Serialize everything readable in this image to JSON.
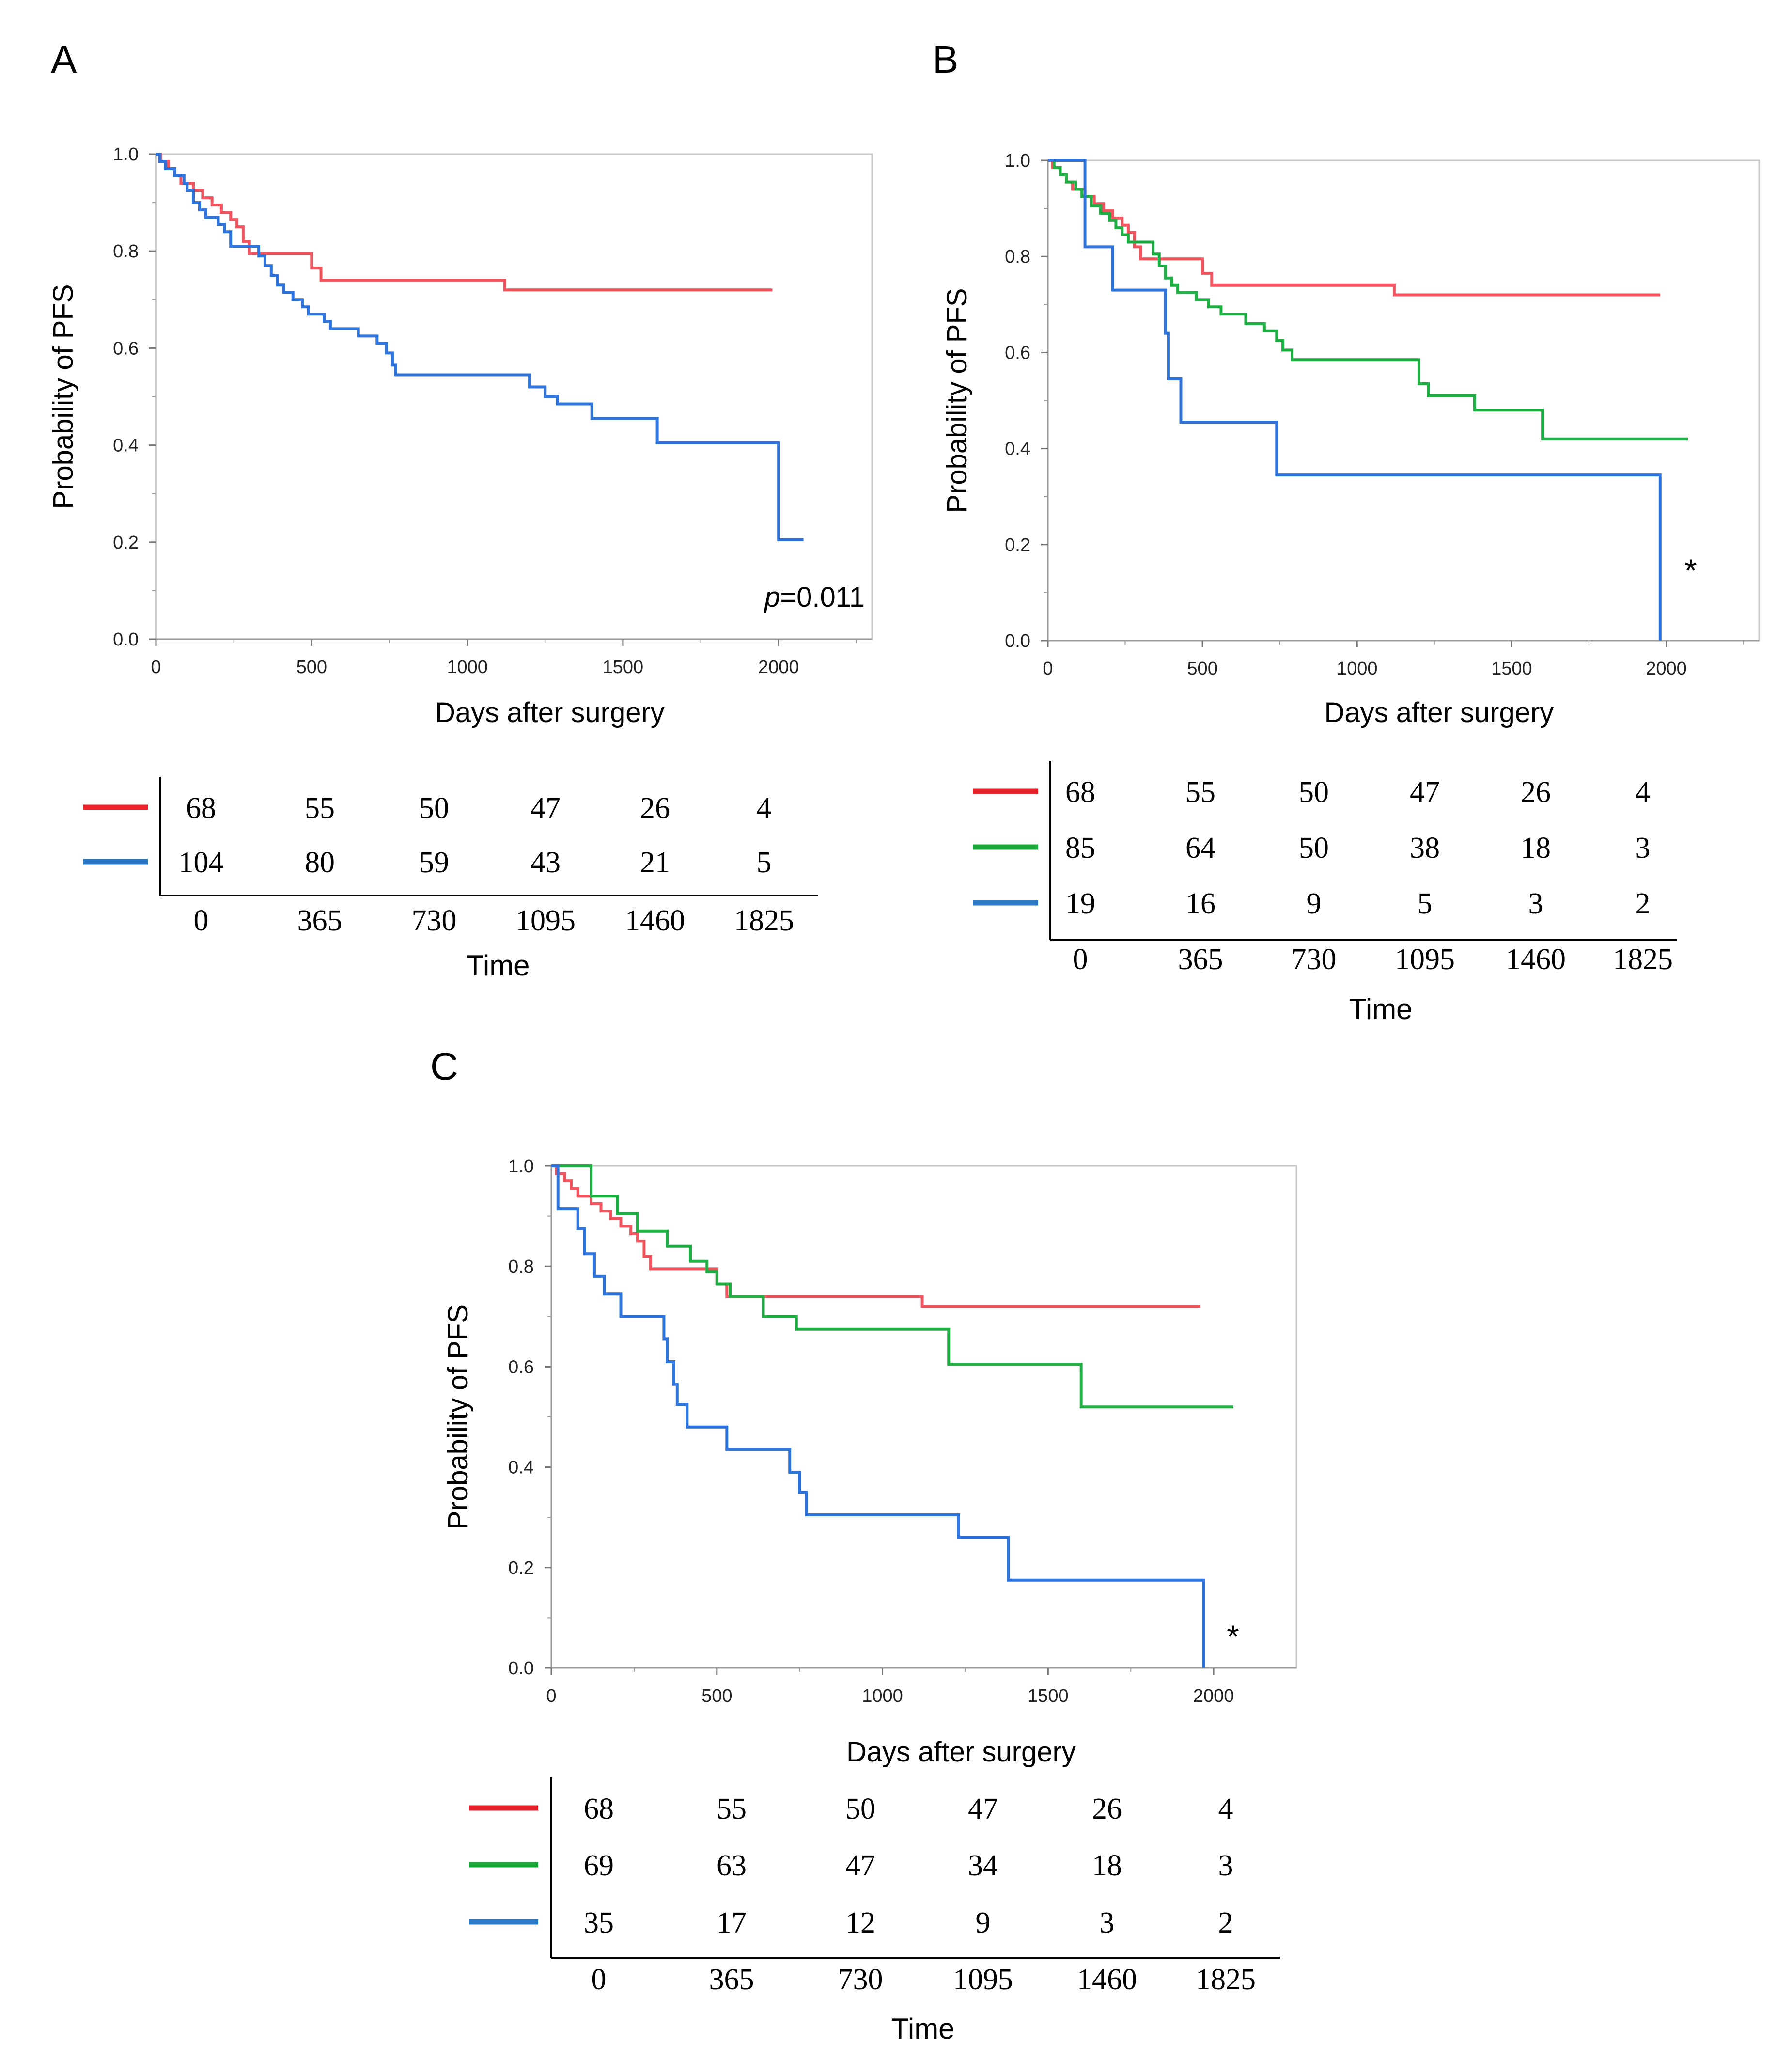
{
  "colors": {
    "red": "#f0555f",
    "green": "#1fae44",
    "blue": "#2f74dc",
    "table_red": "#e8202a",
    "table_green": "#18a83a",
    "table_blue": "#2a78c6"
  },
  "chart_data": [
    {
      "id": "A",
      "type": "line",
      "panel_label": "A",
      "xlabel": "Days after surgery",
      "ylabel": "Probability of PFS",
      "xlim": [
        0,
        2300
      ],
      "ylim": [
        0,
        1
      ],
      "xticks": [
        "0",
        "500",
        "1000",
        "1500",
        "2000"
      ],
      "yticks": [
        "0.0",
        "0.2",
        "0.4",
        "0.6",
        "0.8",
        "1.0"
      ],
      "annotation": {
        "italic": "p",
        "text": "=0.011"
      },
      "series": [
        {
          "name": "red",
          "color_key": "red",
          "steps": [
            [
              0,
              1.0
            ],
            [
              15,
              0.985
            ],
            [
              40,
              0.97
            ],
            [
              60,
              0.955
            ],
            [
              80,
              0.94
            ],
            [
              120,
              0.925
            ],
            [
              150,
              0.91
            ],
            [
              180,
              0.895
            ],
            [
              210,
              0.88
            ],
            [
              240,
              0.865
            ],
            [
              260,
              0.85
            ],
            [
              280,
              0.82
            ],
            [
              300,
              0.795
            ],
            [
              500,
              0.765
            ],
            [
              530,
              0.74
            ],
            [
              1120,
              0.72
            ],
            [
              1980,
              0.72
            ]
          ]
        },
        {
          "name": "blue",
          "color_key": "blue",
          "steps": [
            [
              0,
              1.0
            ],
            [
              12,
              0.985
            ],
            [
              30,
              0.97
            ],
            [
              60,
              0.955
            ],
            [
              90,
              0.94
            ],
            [
              100,
              0.925
            ],
            [
              120,
              0.9
            ],
            [
              140,
              0.885
            ],
            [
              160,
              0.87
            ],
            [
              200,
              0.855
            ],
            [
              220,
              0.84
            ],
            [
              240,
              0.81
            ],
            [
              330,
              0.79
            ],
            [
              350,
              0.77
            ],
            [
              370,
              0.75
            ],
            [
              390,
              0.73
            ],
            [
              410,
              0.715
            ],
            [
              440,
              0.7
            ],
            [
              470,
              0.685
            ],
            [
              490,
              0.67
            ],
            [
              540,
              0.655
            ],
            [
              560,
              0.64
            ],
            [
              650,
              0.625
            ],
            [
              710,
              0.61
            ],
            [
              740,
              0.59
            ],
            [
              760,
              0.565
            ],
            [
              770,
              0.545
            ],
            [
              1200,
              0.52
            ],
            [
              1250,
              0.5
            ],
            [
              1290,
              0.485
            ],
            [
              1400,
              0.455
            ],
            [
              1610,
              0.405
            ],
            [
              2000,
              0.205
            ],
            [
              2080,
              0.205
            ]
          ]
        }
      ]
    },
    {
      "id": "B",
      "type": "line",
      "panel_label": "B",
      "xlabel": "Days after surgery",
      "ylabel": "Probability of PFS",
      "xlim": [
        0,
        2300
      ],
      "ylim": [
        0,
        1
      ],
      "xticks": [
        "0",
        "500",
        "1000",
        "1500",
        "2000"
      ],
      "yticks": [
        "0.0",
        "0.2",
        "0.4",
        "0.6",
        "0.8",
        "1.0"
      ],
      "annotation_star": "*",
      "series": [
        {
          "name": "red",
          "color_key": "red",
          "steps": [
            [
              0,
              1.0
            ],
            [
              15,
              0.985
            ],
            [
              40,
              0.97
            ],
            [
              60,
              0.955
            ],
            [
              80,
              0.94
            ],
            [
              120,
              0.925
            ],
            [
              150,
              0.91
            ],
            [
              180,
              0.895
            ],
            [
              210,
              0.88
            ],
            [
              240,
              0.865
            ],
            [
              260,
              0.85
            ],
            [
              280,
              0.82
            ],
            [
              300,
              0.795
            ],
            [
              500,
              0.765
            ],
            [
              530,
              0.74
            ],
            [
              1120,
              0.72
            ],
            [
              1980,
              0.72
            ]
          ]
        },
        {
          "name": "green",
          "color_key": "green",
          "steps": [
            [
              0,
              1.0
            ],
            [
              20,
              0.985
            ],
            [
              40,
              0.97
            ],
            [
              60,
              0.955
            ],
            [
              90,
              0.94
            ],
            [
              110,
              0.925
            ],
            [
              140,
              0.905
            ],
            [
              170,
              0.89
            ],
            [
              200,
              0.875
            ],
            [
              220,
              0.86
            ],
            [
              240,
              0.845
            ],
            [
              260,
              0.83
            ],
            [
              340,
              0.805
            ],
            [
              360,
              0.78
            ],
            [
              380,
              0.755
            ],
            [
              400,
              0.74
            ],
            [
              420,
              0.725
            ],
            [
              480,
              0.71
            ],
            [
              520,
              0.695
            ],
            [
              560,
              0.68
            ],
            [
              640,
              0.66
            ],
            [
              700,
              0.645
            ],
            [
              740,
              0.625
            ],
            [
              760,
              0.605
            ],
            [
              790,
              0.585
            ],
            [
              1200,
              0.535
            ],
            [
              1230,
              0.51
            ],
            [
              1380,
              0.48
            ],
            [
              1600,
              0.42
            ],
            [
              2070,
              0.42
            ]
          ]
        },
        {
          "name": "blue",
          "color_key": "blue",
          "steps": [
            [
              0,
              1.0
            ],
            [
              120,
              0.82
            ],
            [
              210,
              0.73
            ],
            [
              380,
              0.64
            ],
            [
              390,
              0.545
            ],
            [
              430,
              0.455
            ],
            [
              740,
              0.345
            ],
            [
              1980,
              0.0
            ]
          ]
        }
      ]
    },
    {
      "id": "C",
      "type": "line",
      "panel_label": "C",
      "xlabel": "Days after surgery",
      "ylabel": "Probability of PFS",
      "xlim": [
        0,
        2250
      ],
      "ylim": [
        0,
        1
      ],
      "xticks": [
        "0",
        "500",
        "1000",
        "1500",
        "2000"
      ],
      "yticks": [
        "0.0",
        "0.2",
        "0.4",
        "0.6",
        "0.8",
        "1.0"
      ],
      "annotation_star": "*",
      "series": [
        {
          "name": "red",
          "color_key": "red",
          "steps": [
            [
              0,
              1.0
            ],
            [
              15,
              0.985
            ],
            [
              40,
              0.97
            ],
            [
              60,
              0.955
            ],
            [
              80,
              0.94
            ],
            [
              120,
              0.925
            ],
            [
              150,
              0.91
            ],
            [
              180,
              0.895
            ],
            [
              210,
              0.88
            ],
            [
              240,
              0.865
            ],
            [
              260,
              0.85
            ],
            [
              280,
              0.82
            ],
            [
              300,
              0.795
            ],
            [
              500,
              0.765
            ],
            [
              530,
              0.74
            ],
            [
              1120,
              0.72
            ],
            [
              1960,
              0.72
            ]
          ]
        },
        {
          "name": "green",
          "color_key": "green",
          "steps": [
            [
              0,
              1.0
            ],
            [
              120,
              0.94
            ],
            [
              200,
              0.905
            ],
            [
              260,
              0.87
            ],
            [
              350,
              0.84
            ],
            [
              420,
              0.81
            ],
            [
              470,
              0.79
            ],
            [
              500,
              0.765
            ],
            [
              540,
              0.74
            ],
            [
              640,
              0.7
            ],
            [
              740,
              0.675
            ],
            [
              1200,
              0.605
            ],
            [
              1600,
              0.52
            ],
            [
              2060,
              0.52
            ]
          ]
        },
        {
          "name": "blue",
          "color_key": "blue",
          "steps": [
            [
              0,
              1.0
            ],
            [
              20,
              0.915
            ],
            [
              80,
              0.875
            ],
            [
              100,
              0.825
            ],
            [
              130,
              0.78
            ],
            [
              160,
              0.745
            ],
            [
              210,
              0.7
            ],
            [
              340,
              0.655
            ],
            [
              350,
              0.61
            ],
            [
              370,
              0.565
            ],
            [
              380,
              0.525
            ],
            [
              410,
              0.48
            ],
            [
              530,
              0.435
            ],
            [
              720,
              0.39
            ],
            [
              750,
              0.35
            ],
            [
              770,
              0.305
            ],
            [
              1230,
              0.26
            ],
            [
              1380,
              0.175
            ],
            [
              1970,
              0.0
            ]
          ]
        }
      ]
    }
  ],
  "risk_tables": [
    {
      "id": "A",
      "xlabel": "Time",
      "times": [
        "0",
        "365",
        "730",
        "1095",
        "1460",
        "1825"
      ],
      "rows": [
        {
          "color_key": "table_red",
          "values": [
            "68",
            "55",
            "50",
            "47",
            "26",
            "4"
          ]
        },
        {
          "color_key": "table_blue",
          "values": [
            "104",
            "80",
            "59",
            "43",
            "21",
            "5"
          ]
        }
      ]
    },
    {
      "id": "B",
      "xlabel": "Time",
      "times": [
        "0",
        "365",
        "730",
        "1095",
        "1460",
        "1825"
      ],
      "rows": [
        {
          "color_key": "table_red",
          "values": [
            "68",
            "55",
            "50",
            "47",
            "26",
            "4"
          ]
        },
        {
          "color_key": "table_green",
          "values": [
            "85",
            "64",
            "50",
            "38",
            "18",
            "3"
          ]
        },
        {
          "color_key": "table_blue",
          "values": [
            "19",
            "16",
            "9",
            "5",
            "3",
            "2"
          ]
        }
      ]
    },
    {
      "id": "C",
      "xlabel": "Time",
      "times": [
        "0",
        "365",
        "730",
        "1095",
        "1460",
        "1825"
      ],
      "rows": [
        {
          "color_key": "table_red",
          "values": [
            "68",
            "55",
            "50",
            "47",
            "26",
            "4"
          ]
        },
        {
          "color_key": "table_green",
          "values": [
            "69",
            "63",
            "47",
            "34",
            "18",
            "3"
          ]
        },
        {
          "color_key": "table_blue",
          "values": [
            "35",
            "17",
            "12",
            "9",
            "3",
            "2"
          ]
        }
      ]
    }
  ]
}
